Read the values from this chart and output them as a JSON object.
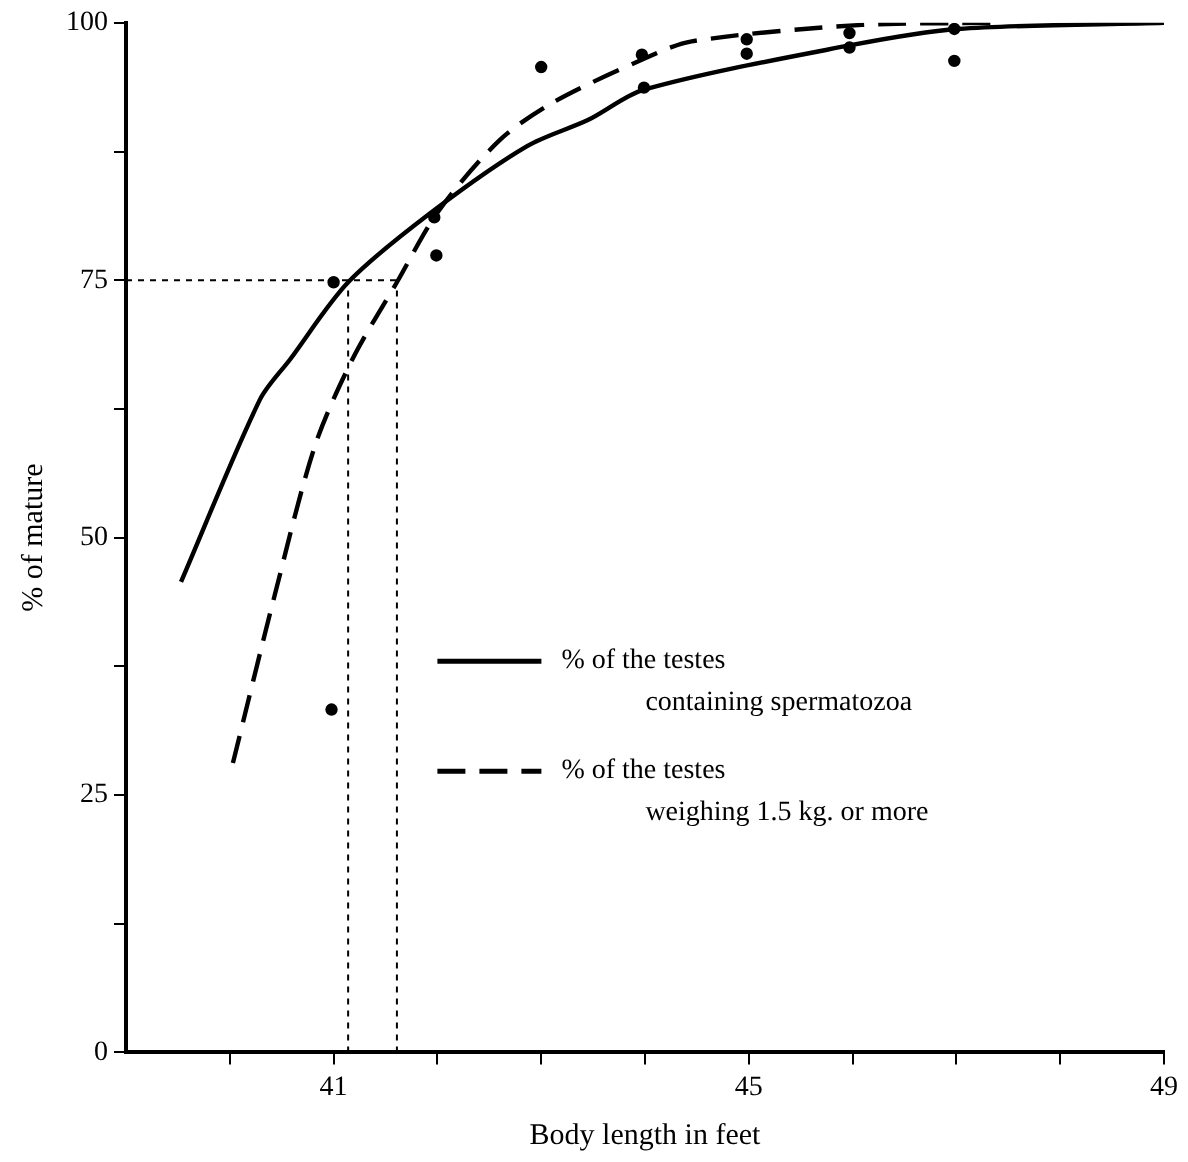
{
  "chart_data": {
    "type": "line",
    "xlabel": "Body length in feet",
    "ylabel": "% of mature",
    "xlim": [
      39,
      49
    ],
    "ylim": [
      0,
      100
    ],
    "xticks": [
      {
        "value": 40,
        "label": null
      },
      41,
      {
        "value": 42,
        "label": null
      },
      {
        "value": 43,
        "label": null
      },
      {
        "value": 44,
        "label": null
      },
      45,
      {
        "value": 46,
        "label": null
      },
      {
        "value": 47,
        "label": null
      },
      {
        "value": 48,
        "label": null
      },
      49
    ],
    "yticks": [
      0,
      {
        "value": 12.5,
        "label": null
      },
      25,
      {
        "value": 37.5,
        "label": null
      },
      50,
      {
        "value": 62.5,
        "label": null
      },
      75,
      {
        "value": 87.5,
        "label": null
      },
      100
    ],
    "grid": false,
    "legend": "right",
    "marker": "none",
    "series": [
      {
        "name": "% of the testes containing spermatozoa",
        "type": "line",
        "line_style": "solid",
        "color": "#000000",
        "x": [
          39.53,
          40.29,
          40.58,
          41.14,
          41.93,
          42.86,
          43.46,
          43.99,
          45.97,
          47.02,
          49
        ],
        "values": [
          45.7,
          63.4,
          67.3,
          74.8,
          81.5,
          88,
          90.6,
          93.5,
          97.8,
          99.4,
          100
        ]
      },
      {
        "name": "% of the testes weighing 1.5 kg. or more",
        "type": "line",
        "line_style": "dashed",
        "color": "#000000",
        "x": [
          40.03,
          40.43,
          40.82,
          41.18,
          41.61,
          42.01,
          42.6,
          43.12,
          43.99,
          44.45,
          46.09,
          47.4
        ],
        "values": [
          28.1,
          44.3,
          58.9,
          67.3,
          74.8,
          81.7,
          88.6,
          92.3,
          96.5,
          98.2,
          99.8,
          100
        ]
      },
      {
        "type": "scatter",
        "marker": "circle",
        "color": "#000000",
        "x": [
          41,
          41.97,
          43.99,
          44.98,
          45.97,
          46.98
        ],
        "values": [
          74.8,
          81.1,
          93.7,
          98.4,
          97.6,
          96.3
        ]
      },
      {
        "type": "scatter",
        "marker": "circle",
        "color": "#000000",
        "x": [
          40.98,
          41.99,
          43,
          43.97,
          44.98,
          45.97,
          46.98
        ],
        "values": [
          33.3,
          77.4,
          95.7,
          96.9,
          97,
          99,
          99.4
        ]
      }
    ],
    "ref_lines": [
      {
        "axis": "y",
        "value": 75,
        "line_style": "dotted"
      },
      {
        "axis": "x",
        "value": 41.14,
        "line_style": "dotted"
      },
      {
        "axis": "x",
        "value": 41.61,
        "line_style": "dotted"
      }
    ]
  }
}
